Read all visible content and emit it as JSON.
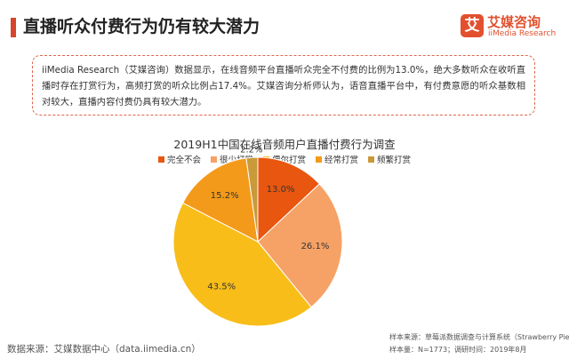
{
  "header": {
    "title": "直播听众付费行为仍有较大潜力",
    "brand_mark": "艾",
    "brand_cn": "艾媒咨询",
    "brand_en": "iiMedia Research"
  },
  "colors": {
    "accent": "#d6452c",
    "brand": "#e2502e"
  },
  "summary": "iiMedia Research（艾媒咨询）数据显示，在线音频平台直播听众完全不付费的比例为13.0%，绝大多数听众在收听直播时存在打赏行为，高频打赏的听众比例占17.4%。艾媒咨询分析师认为，语音直播平台中，有付费意愿的听众基数相对较大，直播内容付费仍具有较大潜力。",
  "chart_data": {
    "type": "pie",
    "title": "2019H1中国在线音频用户直播付费行为调查",
    "categories": [
      "完全不会",
      "很少打赏",
      "偶尔打赏",
      "经常打赏",
      "频繁打赏"
    ],
    "values": [
      13.0,
      26.1,
      43.5,
      15.2,
      2.2
    ],
    "labels": [
      "13.0%",
      "26.1%",
      "43.5%",
      "15.2%",
      "2.2%"
    ],
    "colors": [
      "#e8560f",
      "#f6a266",
      "#f8bd18",
      "#f49a1a",
      "#c99a3a"
    ],
    "legend_position": "top"
  },
  "footer": {
    "source": "数据来源：艾媒数据中心（data.iimedia.cn）",
    "sample_source": "样本来源：草莓派数据调查与计算系统（Strawberry Pie）",
    "sample_info": "样本量：N=1773；调研时间：2019年8月"
  }
}
